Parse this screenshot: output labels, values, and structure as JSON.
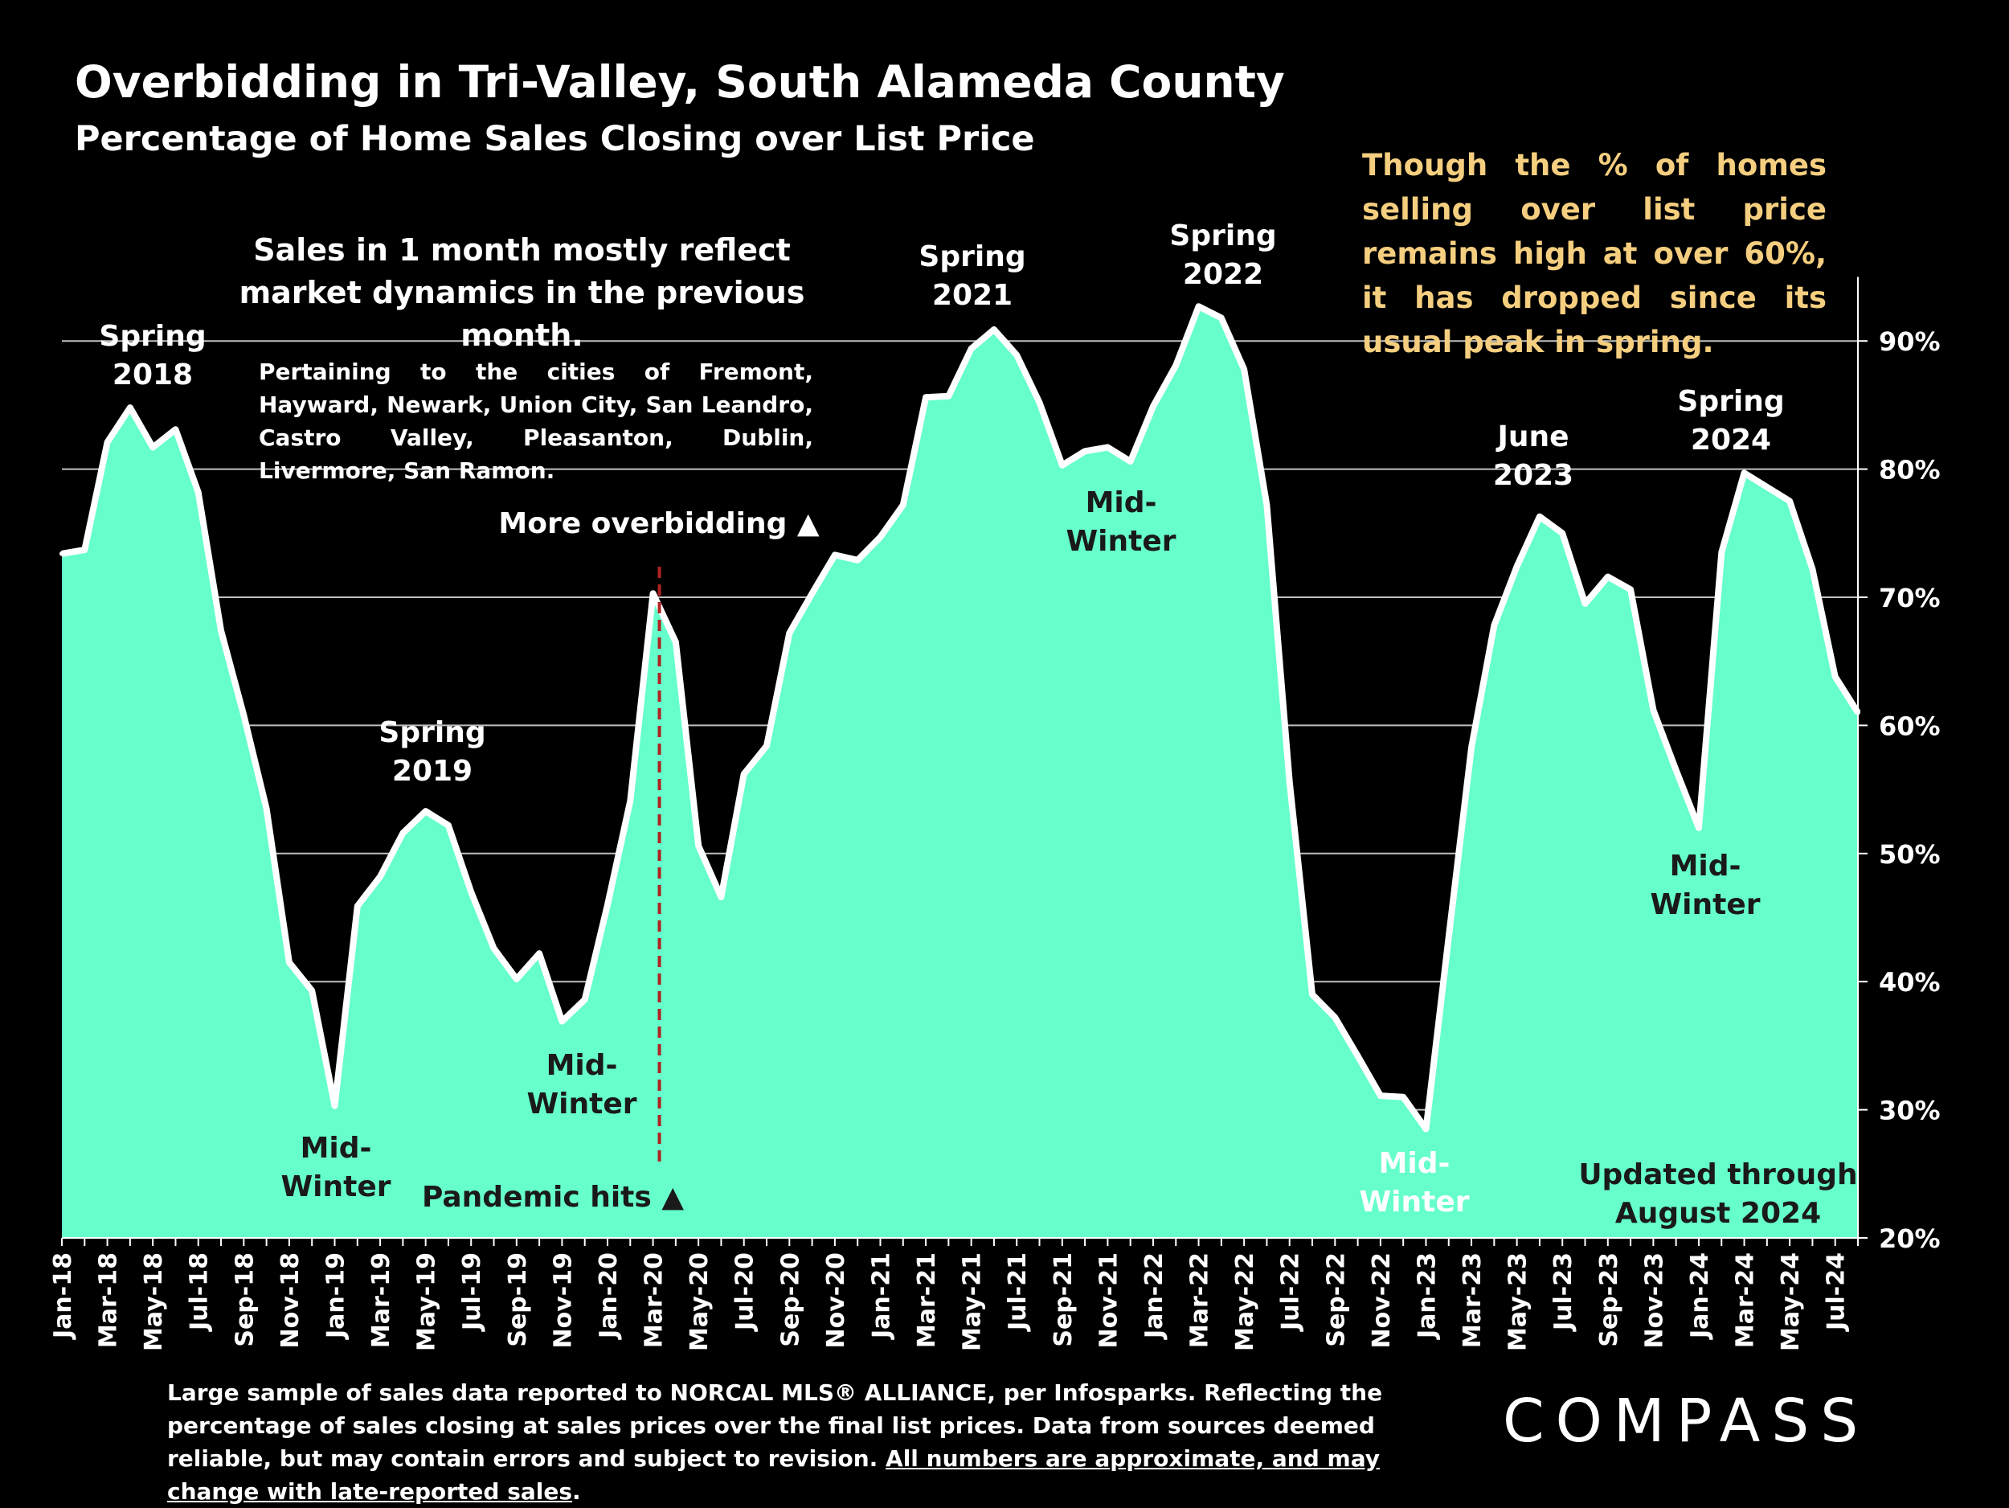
{
  "header": {
    "title": "Overbidding in Tri-Valley, South Alameda County",
    "subtitle": "Percentage of Home Sales Closing over List Price"
  },
  "notes": {
    "highlight": "Though the % of homes selling over list price remains high at over 60%, it has dropped since its usual peak in spring.",
    "sales_lag": "Sales in 1 month mostly reflect market dynamics in the previous month.",
    "cities": "Pertaining to the cities of Fremont, Hayward, Newark, Union City, San Leandro, Castro Valley, Pleasanton, Dublin, Livermore, San Ramon.",
    "updated_line1": "Updated through",
    "updated_line2": "August 2024"
  },
  "annotations": {
    "spring2018": [
      "Spring",
      "2018"
    ],
    "winter2019": [
      "Mid-",
      "Winter"
    ],
    "spring2019": [
      "Spring",
      "2019"
    ],
    "winter2020": [
      "Mid-",
      "Winter"
    ],
    "more_overbidding": "More overbidding ▲",
    "pandemic": "Pandemic hits ▲",
    "spring2021": [
      "Spring",
      "2021"
    ],
    "winter2022": [
      "Mid-",
      "Winter"
    ],
    "spring2022": [
      "Spring",
      "2022"
    ],
    "winter2023": [
      "Mid-",
      "Winter"
    ],
    "june2023": [
      "June",
      "2023"
    ],
    "winter2024": [
      "Mid-",
      "Winter"
    ],
    "spring2024": [
      "Spring",
      "2024"
    ]
  },
  "footer": {
    "text": "Large sample of sales data reported to NORCAL MLS® ALLIANCE, per Infosparks. Reflecting the percentage of sales closing at sales prices over the final list prices. Data from sources deemed reliable, but may contain errors and subject to revision. ",
    "underlined": "All numbers are approximate, and may change with late-reported sales",
    "end": "."
  },
  "brand": {
    "logo": "COMPASS"
  },
  "colors": {
    "area": "#66ffcc",
    "line": "#ffffff",
    "note": "#f5cf7f",
    "background": "#000000",
    "pandemic_line": "#b22222"
  },
  "chart_data": {
    "type": "area",
    "title": "Overbidding in Tri-Valley, South Alameda County",
    "subtitle": "Percentage of Home Sales Closing over List Price",
    "xlabel": "",
    "ylabel": "",
    "ylim": [
      20,
      95
    ],
    "yticks": [
      20,
      30,
      40,
      50,
      60,
      70,
      80,
      90
    ],
    "ytick_suffix": "%",
    "x": [
      "Jan-18",
      "Feb-18",
      "Mar-18",
      "Apr-18",
      "May-18",
      "Jun-18",
      "Jul-18",
      "Aug-18",
      "Sep-18",
      "Oct-18",
      "Nov-18",
      "Dec-18",
      "Jan-19",
      "Feb-19",
      "Mar-19",
      "Apr-19",
      "May-19",
      "Jun-19",
      "Jul-19",
      "Aug-19",
      "Sep-19",
      "Oct-19",
      "Nov-19",
      "Dec-19",
      "Jan-20",
      "Feb-20",
      "Mar-20",
      "Apr-20",
      "May-20",
      "Jun-20",
      "Jul-20",
      "Aug-20",
      "Sep-20",
      "Oct-20",
      "Nov-20",
      "Dec-20",
      "Jan-21",
      "Feb-21",
      "Mar-21",
      "Apr-21",
      "May-21",
      "Jun-21",
      "Jul-21",
      "Aug-21",
      "Sep-21",
      "Oct-21",
      "Nov-21",
      "Dec-21",
      "Jan-22",
      "Feb-22",
      "Mar-22",
      "Apr-22",
      "May-22",
      "Jun-22",
      "Jul-22",
      "Aug-22",
      "Sep-22",
      "Oct-22",
      "Nov-22",
      "Dec-22",
      "Jan-23",
      "Feb-23",
      "Mar-23",
      "Apr-23",
      "May-23",
      "Jun-23",
      "Jul-23",
      "Aug-23",
      "Sep-23",
      "Oct-23",
      "Nov-23",
      "Dec-23",
      "Jan-24",
      "Feb-24",
      "Mar-24",
      "Apr-24",
      "May-24",
      "Jun-24",
      "Jul-24",
      "Aug-24"
    ],
    "xtick_labels": [
      "Jan-18",
      "Mar-18",
      "May-18",
      "Jul-18",
      "Sep-18",
      "Nov-18",
      "Jan-19",
      "Mar-19",
      "May-19",
      "Jul-19",
      "Sep-19",
      "Nov-19",
      "Jan-20",
      "Mar-20",
      "May-20",
      "Jul-20",
      "Sep-20",
      "Nov-20",
      "Jan-21",
      "Mar-21",
      "May-21",
      "Jul-21",
      "Sep-21",
      "Nov-21",
      "Jan-22",
      "Mar-22",
      "May-22",
      "Jul-22",
      "Sep-22",
      "Nov-22",
      "Jan-23",
      "Mar-23",
      "May-23",
      "Jul-23",
      "Sep-23",
      "Nov-23",
      "Jan-24",
      "Mar-24",
      "May-24",
      "Jul-24"
    ],
    "values": [
      73.4,
      73.7,
      82.1,
      84.8,
      81.7,
      83.1,
      78.2,
      67.4,
      60.8,
      53.5,
      41.5,
      39.3,
      30.3,
      45.9,
      48.2,
      51.6,
      53.3,
      52.2,
      47.0,
      42.6,
      40.2,
      42.2,
      36.9,
      38.6,
      46.0,
      54.1,
      70.3,
      66.5,
      50.6,
      46.6,
      56.2,
      58.4,
      67.2,
      70.3,
      73.3,
      72.9,
      74.7,
      77.2,
      85.6,
      85.7,
      89.4,
      90.9,
      88.9,
      85.2,
      80.3,
      81.4,
      81.7,
      80.6,
      84.9,
      88.1,
      92.7,
      91.8,
      87.8,
      77.2,
      55.6,
      39.0,
      37.2,
      34.2,
      31.1,
      31.0,
      28.5,
      43.5,
      58.3,
      67.8,
      72.4,
      76.3,
      75.0,
      69.5,
      71.6,
      70.6,
      61.2,
      56.5,
      52.0,
      73.5,
      79.7,
      78.6,
      77.5,
      72.2,
      63.8,
      61.0
    ],
    "event_marker": {
      "x": "Mar-20",
      "label": "Pandemic hits"
    }
  }
}
